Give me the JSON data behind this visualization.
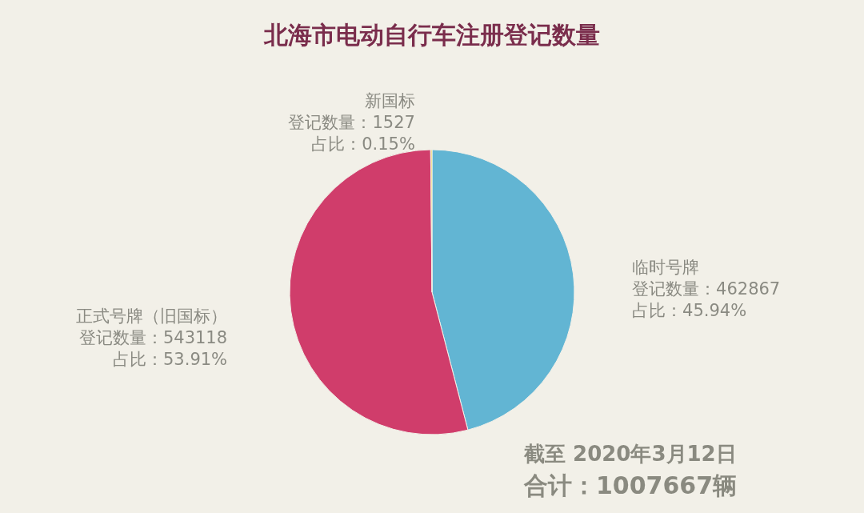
{
  "chart_data": {
    "type": "pie",
    "title": "北海市电动自行车注册登记数量",
    "categories": [
      "临时号牌",
      "正式号牌（旧国标）",
      "新国标"
    ],
    "values": [
      462867,
      543118,
      1527
    ],
    "colors": [
      "#62b5d3",
      "#d03d6b",
      "#f2d24b"
    ],
    "value_labels": [
      "登记数量：462867\n占比：45.94%",
      "登记数量：543118\n占比：53.91%",
      "登记数量：1527\n占比：0.15%"
    ],
    "annotations": [
      "截至 2020年3月12日",
      "合计：1007667辆"
    ]
  }
}
